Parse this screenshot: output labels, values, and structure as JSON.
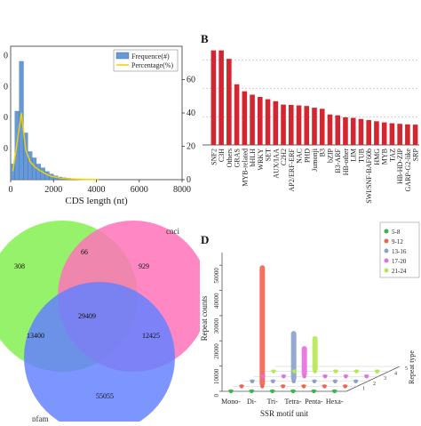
{
  "panels": {
    "A": {
      "label": "",
      "xlabel": "CDS length (nt)",
      "xticks": [
        "0",
        "2000",
        "4000",
        "6000",
        "8000"
      ],
      "yticks_left": [
        "0",
        "0",
        "0",
        "0"
      ],
      "yticks_right": [
        "0",
        "20",
        "40",
        "60"
      ],
      "legend": [
        "Frequence(#)",
        "Percentage(%)"
      ]
    },
    "B": {
      "label": "B"
    },
    "C": {
      "label": ""
    },
    "D": {
      "label": "D"
    }
  },
  "chart_data": [
    {
      "panel": "A",
      "type": "bar",
      "xlabel": "CDS length (nt)",
      "xlim": [
        0,
        8000
      ],
      "ylim_right": [
        0,
        80
      ],
      "bin_width": 200,
      "x": [
        0,
        200,
        400,
        600,
        800,
        1000,
        1200,
        1400,
        1600,
        1800,
        2000,
        2200,
        2400,
        2600,
        2800,
        3000,
        3200,
        3400,
        3600,
        3800,
        4000
      ],
      "series": [
        {
          "name": "Frequence(#)",
          "values": [
            2500,
            11000,
            19000,
            7500,
            4500,
            3500,
            2500,
            1900,
            1300,
            900,
            600,
            420,
            300,
            220,
            160,
            110,
            80,
            60,
            40,
            30,
            20
          ]
        },
        {
          "name": "Percentage(%)",
          "values": [
            5,
            22,
            40,
            18,
            11,
            8,
            6,
            4.5,
            3,
            2,
            1.5,
            1,
            0.7,
            0.5,
            0.4,
            0.3,
            0.2,
            0.15,
            0.1,
            0.05,
            0.03
          ]
        }
      ],
      "colors": {
        "bar": "#6699d8",
        "line": "#f0d000"
      }
    },
    {
      "panel": "B",
      "type": "bar",
      "categories": [
        "SNF2",
        "C3H",
        "Others",
        "GRAS",
        "MYB-related",
        "bHLH",
        "WRKY",
        "SET",
        "AUX/IAA",
        "C2H2",
        "AP2/ERF-ERF",
        "NAC",
        "PHD",
        "Jumonji",
        "B3",
        "bZIP",
        "B3-ARF",
        "HB-other",
        "LIM",
        "TUB",
        "SWI/SNF-BAF60b",
        "HMG",
        "MYB",
        "TAZ",
        "HB-HD-ZIP",
        "GARP-G2-like",
        "SRP"
      ],
      "values": [
        335,
        335,
        305,
        215,
        190,
        178,
        170,
        162,
        155,
        143,
        142,
        140,
        138,
        132,
        128,
        108,
        105,
        98,
        96,
        92,
        88,
        84,
        80,
        77,
        75,
        73,
        72
      ],
      "ylim": [
        0,
        400
      ],
      "gridlines": [
        100,
        200,
        300
      ],
      "colors": {
        "bar": "#d42630"
      }
    },
    {
      "panel": "C",
      "type": "venn",
      "set_labels": [
        "cnci",
        "pfam"
      ],
      "regions": [
        {
          "sets": [
            "green"
          ],
          "value": "308"
        },
        {
          "sets": [
            "pink"
          ],
          "value": "929"
        },
        {
          "sets": [
            "green",
            "pink"
          ],
          "value": "66"
        },
        {
          "sets": [
            "green",
            "blue"
          ],
          "value": "13400"
        },
        {
          "sets": [
            "pink",
            "blue"
          ],
          "value": "12425"
        },
        {
          "sets": [
            "green",
            "pink",
            "blue"
          ],
          "value": "29409"
        },
        {
          "sets": [
            "blue"
          ],
          "value": "55055"
        }
      ],
      "colors": {
        "green": "#7ef04a",
        "pink": "#ff55aa",
        "blue": "#4466ff"
      }
    },
    {
      "panel": "D",
      "type": "bar",
      "xlabel": "SSR motif unit",
      "ylabel": "Repeat counts",
      "zlabel": "Repeat type",
      "categories": [
        "Mono-",
        "Di-",
        "Tri-",
        "Tetra-",
        "Penta-",
        "Hexa-"
      ],
      "yticks": [
        0,
        10000,
        20000,
        30000,
        40000,
        50000
      ],
      "ylim": [
        0,
        55000
      ],
      "depth_ticks": [
        "1",
        "2",
        "3",
        "4",
        "5"
      ],
      "series": [
        {
          "name": "5-8",
          "values": [
            0,
            0,
            0,
            0,
            0,
            0
          ],
          "color": "#3ab54a"
        },
        {
          "name": "9-12",
          "values": [
            0,
            48000,
            0,
            0,
            0,
            0
          ],
          "color": "#ef6351"
        },
        {
          "name": "13-16",
          "values": [
            0,
            0,
            20000,
            0,
            0,
            0
          ],
          "color": "#8da0cb"
        },
        {
          "name": "17-20",
          "values": [
            0,
            0,
            12000,
            0,
            0,
            0
          ],
          "color": "#e76fd9"
        },
        {
          "name": "21-24",
          "values": [
            0,
            0,
            14000,
            0,
            0,
            0
          ],
          "color": "#b5e853"
        }
      ],
      "legend": [
        "5-8",
        "9-12",
        "13-16",
        "17-20",
        "21-24"
      ]
    }
  ]
}
